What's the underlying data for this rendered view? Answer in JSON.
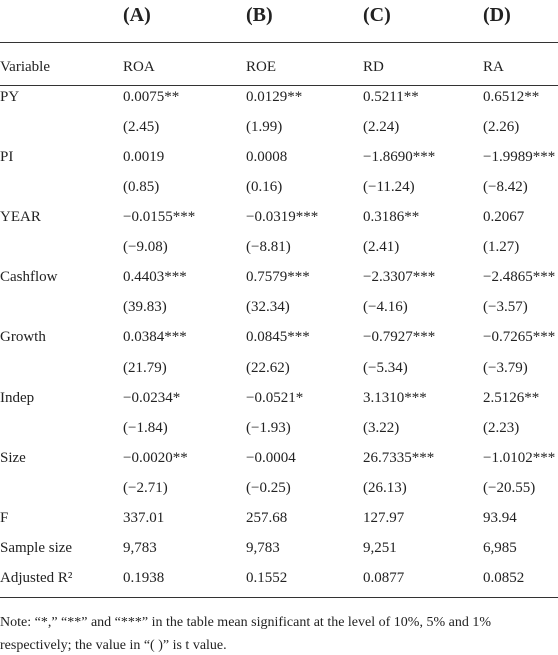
{
  "table": {
    "columns": [
      "(A)",
      "(B)",
      "(C)",
      "(D)"
    ],
    "header": [
      "Variable",
      "ROA",
      "ROE",
      "RD",
      "RA"
    ],
    "rows": [
      {
        "variable": "PY",
        "values": [
          "0.0075**",
          "0.0129**",
          "0.5211**",
          "0.6512**"
        ]
      },
      {
        "values": [
          "(2.45)",
          "(1.99)",
          "(2.24)",
          "(2.26)"
        ]
      },
      {
        "variable": "PI",
        "values": [
          "0.0019",
          "0.0008",
          "−1.8690***",
          "−1.9989***"
        ]
      },
      {
        "values": [
          "(0.85)",
          "(0.16)",
          "(−11.24)",
          "(−8.42)"
        ]
      },
      {
        "variable": "YEAR",
        "values": [
          "−0.0155***",
          "−0.0319***",
          "0.3186**",
          "0.2067"
        ]
      },
      {
        "values": [
          "(−9.08)",
          "(−8.81)",
          "(2.41)",
          "(1.27)"
        ]
      },
      {
        "variable": "Cashflow",
        "values": [
          "0.4403***",
          "0.7579***",
          "−2.3307***",
          "−2.4865***"
        ]
      },
      {
        "values": [
          "(39.83)",
          "(32.34)",
          "(−4.16)",
          "(−3.57)"
        ]
      },
      {
        "variable": "Growth",
        "values": [
          "0.0384***",
          "0.0845***",
          "−0.7927***",
          "−0.7265***"
        ]
      },
      {
        "values": [
          "(21.79)",
          "(22.62)",
          "(−5.34)",
          "(−3.79)"
        ]
      },
      {
        "variable": "Indep",
        "values": [
          "−0.0234*",
          "−0.0521*",
          "3.1310***",
          "2.5126**"
        ]
      },
      {
        "values": [
          "(−1.84)",
          "(−1.93)",
          "(3.22)",
          "(2.23)"
        ]
      },
      {
        "variable": "Size",
        "values": [
          "−0.0020**",
          "−0.0004",
          "26.7335***",
          "−1.0102***"
        ]
      },
      {
        "values": [
          "(−2.71)",
          "(−0.25)",
          "(26.13)",
          "(−20.55)"
        ]
      },
      {
        "variable": "F",
        "values": [
          "337.01",
          "257.68",
          "127.97",
          "93.94"
        ]
      },
      {
        "variable": "Sample size",
        "values": [
          "9,783",
          "9,783",
          "9,251",
          "6,985"
        ]
      },
      {
        "variable": "Adjusted R²",
        "values": [
          "0.1938",
          "0.1552",
          "0.0877",
          "0.0852"
        ]
      }
    ],
    "note": "Note: “*,” “**” and “***” in the table mean significant at the level of 10%, 5% and 1% respectively; the value in “( )” is t value."
  }
}
